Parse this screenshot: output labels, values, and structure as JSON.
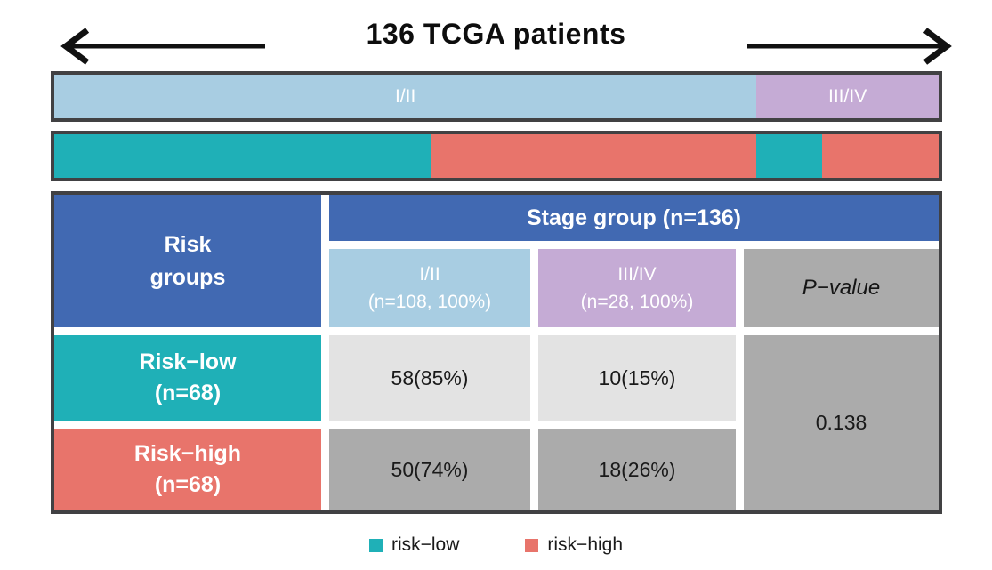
{
  "title": "136 TCGA patients",
  "colors": {
    "header_blue": "#4169B2",
    "stage_i_ii_blue": "#A8CDE2",
    "stage_iii_iv_purple": "#C5ABD5",
    "risk_low_teal": "#1FB0B7",
    "risk_high_salmon": "#E8746B",
    "cell_light_gray": "#E3E3E3",
    "cell_dark_gray": "#ABABAB",
    "frame_dark": "#414143"
  },
  "stage_bar": {
    "segments": [
      {
        "label": "I/II",
        "width_pct": 79.4,
        "color": "#A8CDE2"
      },
      {
        "label": "III/IV",
        "width_pct": 20.6,
        "color": "#C5ABD5"
      }
    ]
  },
  "risk_bar": {
    "segments": [
      {
        "width_pct": 42.6,
        "color": "#1FB0B7"
      },
      {
        "width_pct": 36.8,
        "color": "#E8746B"
      },
      {
        "width_pct": 7.4,
        "color": "#1FB0B7"
      },
      {
        "width_pct": 13.2,
        "color": "#E8746B"
      }
    ]
  },
  "table": {
    "corner": {
      "line1": "Risk",
      "line2": "groups"
    },
    "stage_group_header": "Stage group (n=136)",
    "col_headers": [
      {
        "line1": "I/II",
        "line2": "(n=108, 100%)"
      },
      {
        "line1": "III/IV",
        "line2": "(n=28, 100%)"
      }
    ],
    "pvalue_header": "P−value",
    "rows": [
      {
        "label": {
          "line1": "Risk−low",
          "line2": "(n=68)"
        },
        "cells": [
          "58(85%)",
          "10(15%)"
        ]
      },
      {
        "label": {
          "line1": "Risk−high",
          "line2": "(n=68)"
        },
        "cells": [
          "50(74%)",
          "18(26%)"
        ]
      }
    ],
    "p_value": "0.138"
  },
  "legend": {
    "items": [
      {
        "label": "risk−low",
        "color": "#1FB0B7"
      },
      {
        "label": "risk−high",
        "color": "#E8746B"
      }
    ]
  },
  "chart_data": {
    "type": "table",
    "title": "136 TCGA patients",
    "total_n": 136,
    "stacked_bars": [
      {
        "name": "Stage group",
        "segments": [
          {
            "label": "I/II",
            "n": 108,
            "fraction_pct": 79.4,
            "color": "#A8CDE2"
          },
          {
            "label": "III/IV",
            "n": 28,
            "fraction_pct": 20.6,
            "color": "#C5ABD5"
          }
        ]
      },
      {
        "name": "Risk group ordered by stage",
        "segments": [
          {
            "label": "risk-low in I/II",
            "n": 58,
            "fraction_pct": 42.6,
            "color": "#1FB0B7"
          },
          {
            "label": "risk-high in I/II",
            "n": 50,
            "fraction_pct": 36.8,
            "color": "#E8746B"
          },
          {
            "label": "risk-low in III/IV",
            "n": 10,
            "fraction_pct": 7.4,
            "color": "#1FB0B7"
          },
          {
            "label": "risk-high in III/IV",
            "n": 18,
            "fraction_pct": 13.2,
            "color": "#E8746B"
          }
        ]
      }
    ],
    "columns": [
      "Risk groups",
      "I/II (n=108, 100%)",
      "III/IV (n=28, 100%)",
      "P−value"
    ],
    "rows": [
      {
        "risk_group": "Risk−low (n=68)",
        "i_ii_count": 58,
        "i_ii_pct": 85,
        "iii_iv_count": 10,
        "iii_iv_pct": 15
      },
      {
        "risk_group": "Risk−high (n=68)",
        "i_ii_count": 50,
        "i_ii_pct": 74,
        "iii_iv_count": 18,
        "iii_iv_pct": 26
      }
    ],
    "p_value": 0.138,
    "legend": [
      "risk−low",
      "risk−high"
    ]
  }
}
